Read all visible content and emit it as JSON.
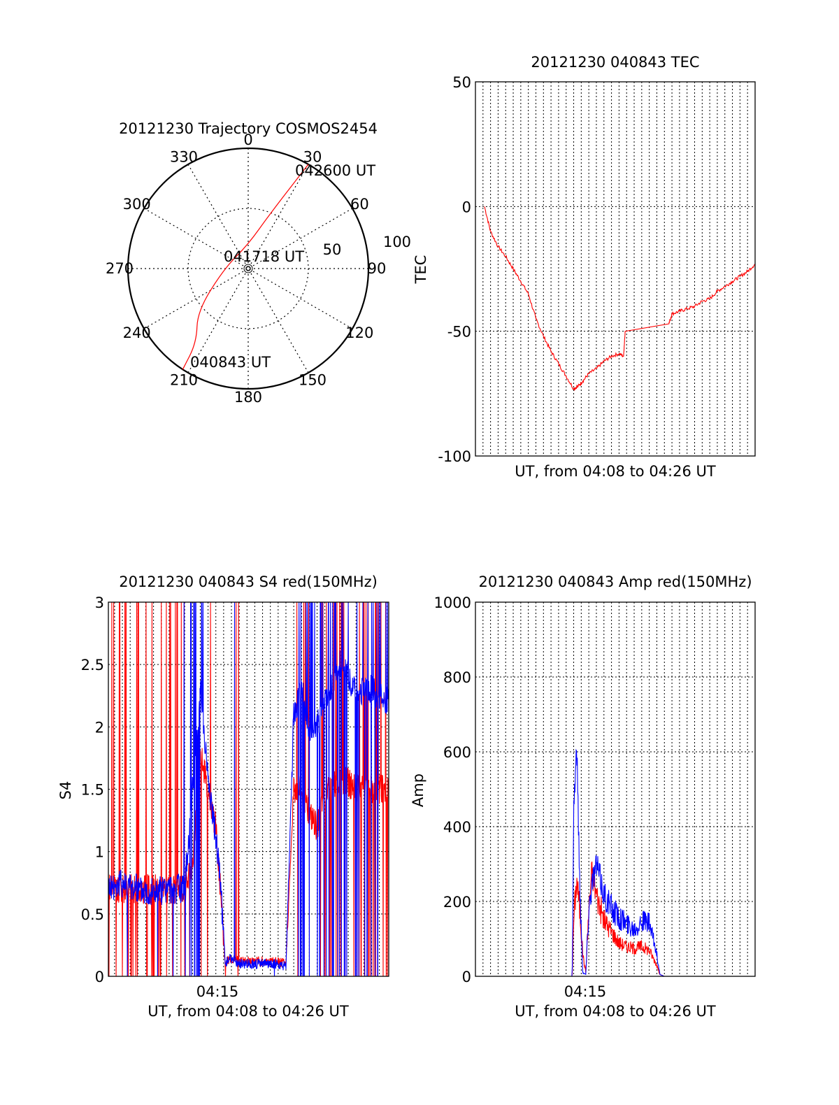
{
  "colors": {
    "red": "#ff0000",
    "blue": "#0000ff",
    "axis": "#000000",
    "grid": "#000000",
    "background": "#ffffff"
  },
  "chart_data": [
    {
      "id": "polar",
      "type": "scatter",
      "title": "20121230 Trajectory COSMOS2454",
      "azimuth_labels": [
        "0",
        "30",
        "60",
        "90",
        "120",
        "150",
        "180",
        "210",
        "240",
        "270",
        "300",
        "330"
      ],
      "radial_tick_labels": [
        "50",
        "100"
      ],
      "r_max": 100,
      "track": {
        "color": "red",
        "points": [
          [
            213,
            100
          ],
          [
            215,
            75
          ],
          [
            230,
            55
          ],
          [
            270,
            20
          ],
          [
            0,
            20
          ],
          [
            22,
            50
          ],
          [
            30,
            100
          ]
        ]
      },
      "annotations": {
        "start": "040843 UT",
        "middle": "041718 UT",
        "end": "042600 UT"
      }
    },
    {
      "id": "tec",
      "type": "line",
      "title": "20121230 040843 TEC",
      "ylabel": "TEC",
      "xlabel": "UT, from 04:08 to 04:26 UT",
      "xlim": [
        407.5,
        426
      ],
      "ylim": [
        -100,
        50
      ],
      "yticks": [
        "50",
        "0",
        "-50",
        "-100"
      ],
      "grid": true,
      "series": [
        {
          "color": "red",
          "x": [
            408.1,
            408.5,
            409,
            409.5,
            410,
            410.5,
            411,
            411.5,
            412,
            412.5,
            413,
            413.5,
            414,
            414.3,
            414.6,
            415,
            415.5,
            416,
            416.5,
            417,
            417.3,
            417.4,
            420.3,
            420.5,
            421,
            421.5,
            422,
            422.5,
            423,
            423.5,
            424,
            424.5,
            425,
            425.5,
            426
          ],
          "y": [
            0,
            -10,
            -16,
            -20,
            -25,
            -30,
            -35,
            -45,
            -52,
            -58,
            -63,
            -68,
            -73,
            -72,
            -70,
            -67,
            -65,
            -62,
            -60,
            -59,
            -60,
            -50,
            -47,
            -43,
            -42,
            -41,
            -40,
            -38,
            -37,
            -34,
            -32,
            -30,
            -28,
            -26,
            -23
          ]
        }
      ]
    },
    {
      "id": "s4",
      "type": "line",
      "title": "20121230 040843 S4 red(150MHz)",
      "ylabel": "S4",
      "xlabel": "UT, from 04:08 to 04:26 UT",
      "xtick_labels": [
        "04:15"
      ],
      "xlim": [
        408.1,
        426.1
      ],
      "ylim": [
        0,
        3
      ],
      "yticks": [
        "3",
        "2.5",
        "2",
        "1.5",
        "1",
        "0.5",
        "0"
      ],
      "grid": true,
      "series": [
        {
          "color": "red",
          "x": [
            408.1,
            409,
            410,
            411,
            412,
            413,
            413.5,
            414,
            414.5,
            415,
            415.3,
            415.6,
            415.9,
            416.5,
            417,
            418,
            419,
            419.5,
            420,
            420.5,
            421,
            421.5,
            422,
            423,
            424,
            425,
            426
          ],
          "y": [
            0.7,
            0.7,
            0.7,
            0.7,
            0.68,
            0.7,
            0.9,
            1.8,
            1.5,
            1.2,
            0.7,
            0.1,
            0.15,
            0.12,
            0.12,
            0.12,
            0.12,
            0.1,
            1.5,
            1.5,
            1.3,
            1.2,
            1.45,
            1.6,
            1.5,
            1.5,
            1.5
          ]
        },
        {
          "color": "blue",
          "x": [
            408.1,
            409,
            410,
            411,
            412,
            413,
            413.5,
            414,
            414.5,
            415,
            415.3,
            415.6,
            415.9,
            416.5,
            417,
            418,
            419,
            419.5,
            420,
            420.5,
            421,
            421.5,
            422,
            423,
            424,
            425,
            426
          ],
          "y": [
            0.72,
            0.75,
            0.7,
            0.68,
            0.7,
            0.7,
            1.5,
            2.3,
            1.6,
            1.1,
            0.75,
            0.1,
            0.15,
            0.1,
            0.1,
            0.1,
            0.1,
            0.08,
            2.1,
            2.3,
            2.0,
            2.0,
            2.2,
            2.5,
            2.3,
            2.3,
            2.2
          ]
        }
      ]
    },
    {
      "id": "amp",
      "type": "line",
      "title": "20121230 040843 Amp red(150MHz)",
      "ylabel": "Amp",
      "xlabel": "UT, from 04:08 to 04:26 UT",
      "xtick_labels": [
        "04:15"
      ],
      "xlim": [
        407.5,
        426
      ],
      "ylim": [
        0,
        1000
      ],
      "yticks": [
        "1000",
        "800",
        "600",
        "400",
        "200",
        "0"
      ],
      "grid": true,
      "series": [
        {
          "color": "red",
          "x": [
            408.1,
            410,
            412,
            413.9,
            414,
            414.2,
            414.4,
            414.6,
            414.8,
            415,
            415.2,
            415.5,
            416,
            416.5,
            417,
            417.5,
            418,
            418.5,
            419,
            419.5,
            419.7,
            420,
            426
          ],
          "y": [
            0,
            0,
            0,
            0,
            150,
            260,
            180,
            60,
            10,
            180,
            280,
            220,
            150,
            120,
            90,
            80,
            75,
            80,
            70,
            30,
            5,
            0,
            0
          ]
        },
        {
          "color": "blue",
          "x": [
            408.1,
            410,
            412,
            413.9,
            414,
            414.2,
            414.4,
            414.6,
            414.8,
            415,
            415.2,
            415.5,
            416,
            416.5,
            417,
            417.5,
            418,
            418.5,
            419,
            419.5,
            419.7,
            420,
            426
          ],
          "y": [
            0,
            0,
            0,
            0,
            450,
            620,
            250,
            10,
            5,
            180,
            250,
            300,
            220,
            180,
            160,
            140,
            130,
            150,
            140,
            60,
            5,
            0,
            0
          ]
        }
      ]
    }
  ]
}
